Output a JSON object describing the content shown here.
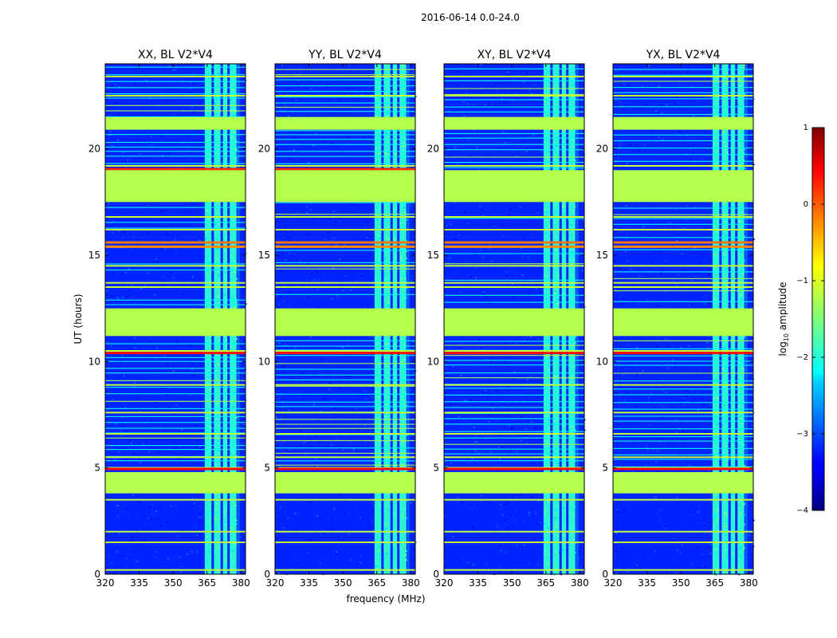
{
  "figure": {
    "suptitle": "2016-06-14 0.0-24.0"
  },
  "chart_data": {
    "type": "heatmap",
    "panels": [
      {
        "title": "XX, BL V2*V4",
        "pol": "XX"
      },
      {
        "title": "YY, BL V2*V4",
        "pol": "YY"
      },
      {
        "title": "XY, BL V2*V4",
        "pol": "XY"
      },
      {
        "title": "YX, BL V2*V4",
        "pol": "YX"
      }
    ],
    "xlabel": "frequency (MHz)",
    "ylabel": "UT (hours)",
    "xlim": [
      320,
      382
    ],
    "ylim": [
      0,
      24
    ],
    "xticks": [
      320,
      335,
      350,
      365,
      380
    ],
    "yticks": [
      0,
      5,
      10,
      15,
      20
    ],
    "colorbar": {
      "label": "log10 amplitude",
      "label_base": "log",
      "label_sub": "10",
      "label_rest": " amplitude",
      "range": [
        -4,
        1
      ],
      "ticks": [
        {
          "value": 1,
          "label": "1"
        },
        {
          "value": 0,
          "label": "0"
        },
        {
          "value": -1,
          "label": "−1"
        },
        {
          "value": -2,
          "label": "−2"
        },
        {
          "value": -3,
          "label": "−3"
        },
        {
          "value": -4,
          "label": "−4"
        }
      ],
      "colormap": "jet"
    },
    "flagged_value": -1.25,
    "background_value": -3.2,
    "flagged_blocks_ut": [
      [
        3.8,
        4.8
      ],
      [
        11.2,
        12.5
      ],
      [
        17.5,
        19.0
      ],
      [
        20.9,
        21.5
      ]
    ],
    "signal_band_mhz": [
      364,
      378
    ],
    "signal_value": -1.9,
    "band_gap_channels_mhz": [
      367.5,
      371.5,
      374.5
    ],
    "rfi_lines_ut": [
      0.2,
      1.5,
      2.0,
      3.5,
      5.0,
      5.5,
      6.6,
      7.6,
      8.9,
      10.5,
      13.5,
      13.7,
      14.5,
      16.2,
      16.8,
      19.2,
      22.5,
      23.4
    ],
    "hot_rows_ut": [
      {
        "ut": 15.4,
        "value": -0.3,
        "panels": [
          "XX",
          "YY",
          "XY",
          "YX"
        ]
      },
      {
        "ut": 15.6,
        "value": -0.2,
        "panels": [
          "XX",
          "YY",
          "XY",
          "YX"
        ]
      },
      {
        "ut": 10.4,
        "value": 0.3,
        "panels": [
          "XX",
          "YY",
          "XY",
          "YX"
        ]
      },
      {
        "ut": 4.95,
        "value": 0.35,
        "panels": [
          "XX",
          "YY",
          "XY",
          "YX"
        ]
      },
      {
        "ut": 19.05,
        "value": 0.2,
        "panels": [
          "XX",
          "YY"
        ]
      }
    ]
  }
}
